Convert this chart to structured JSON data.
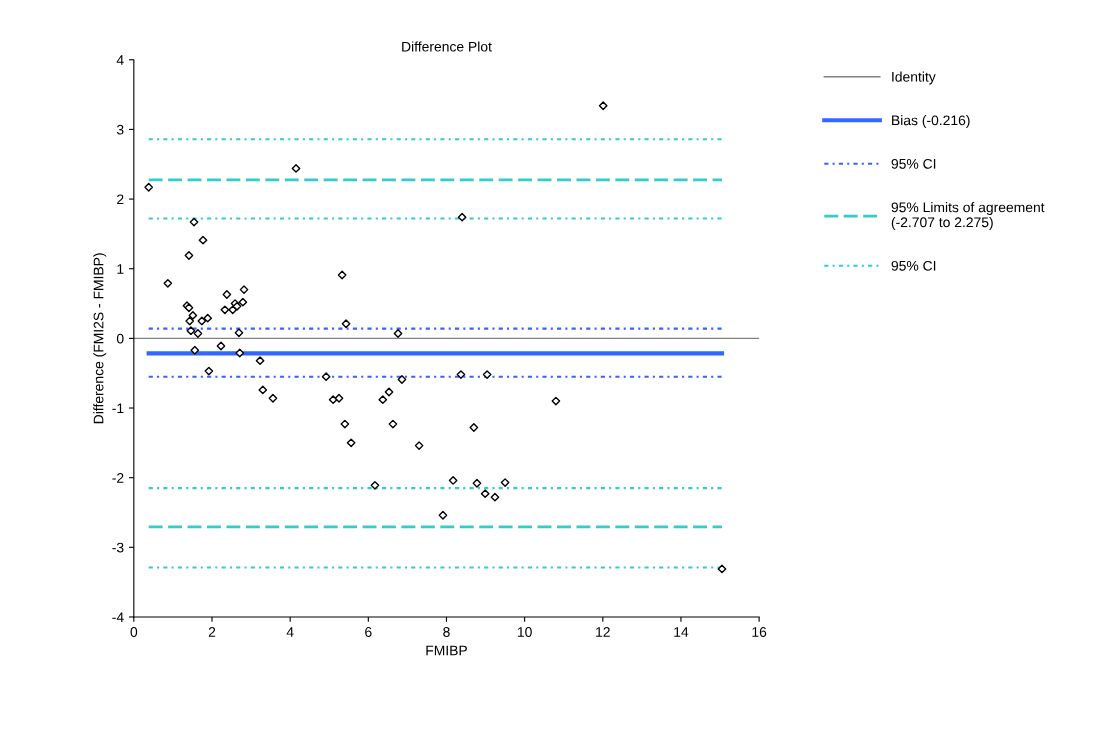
{
  "chart_data": {
    "type": "scatter",
    "title": "Difference Plot",
    "xlabel": "FMIBP",
    "ylabel": "Difference (FMI2S - FMIBP)",
    "xlim": [
      0,
      16
    ],
    "xticks": [
      0,
      2,
      4,
      6,
      8,
      10,
      12,
      14,
      16
    ],
    "ylim": [
      -4,
      4
    ],
    "yticks": [
      -4,
      -3,
      -2,
      -1,
      0,
      1,
      2,
      3,
      4
    ],
    "grid": false,
    "legend": "right",
    "series": [
      {
        "type": "line",
        "name": "Identity",
        "color": "#808080",
        "line_style": "solid",
        "x": [
          0,
          16
        ],
        "values": [
          0,
          0
        ]
      },
      {
        "type": "line",
        "name": "Bias (-0.216)",
        "color": "#3366ff",
        "line_style": "solid",
        "x": [
          0.38,
          15.05
        ],
        "values": [
          -0.216,
          -0.216
        ]
      },
      {
        "type": "line",
        "name": "95% CI",
        "color": "#3366ff",
        "line_style": "dotted",
        "x": [
          0.38,
          15.05
        ],
        "values": [
          0.14,
          0.14
        ]
      },
      {
        "type": "line",
        "color": "#3366ff",
        "line_style": "dotted",
        "x": [
          0.38,
          15.05
        ],
        "values": [
          -0.55,
          -0.55
        ]
      },
      {
        "type": "line",
        "name": "95% Limits of agreement\n(-2.707 to 2.275)",
        "color": "#33cccc",
        "line_style": "dashed",
        "x": [
          0.38,
          15.05
        ],
        "values": [
          2.275,
          2.275
        ]
      },
      {
        "type": "line",
        "color": "#33cccc",
        "line_style": "dashed",
        "x": [
          0.38,
          15.05
        ],
        "values": [
          -2.707,
          -2.707
        ]
      },
      {
        "type": "line",
        "name": "95% CI",
        "color": "#33cccc",
        "line_style": "dotted",
        "x": [
          0.38,
          15.05
        ],
        "values": [
          2.86,
          2.86
        ]
      },
      {
        "type": "line",
        "color": "#33cccc",
        "line_style": "dotted",
        "x": [
          0.38,
          15.05
        ],
        "values": [
          1.72,
          1.72
        ]
      },
      {
        "type": "line",
        "color": "#33cccc",
        "line_style": "dotted",
        "x": [
          0.38,
          15.05
        ],
        "values": [
          -2.15,
          -2.15
        ]
      },
      {
        "type": "line",
        "color": "#33cccc",
        "line_style": "dotted",
        "x": [
          0.38,
          15.05
        ],
        "values": [
          -3.29,
          -3.29
        ]
      },
      {
        "marker": "diamond",
        "color": "#000000",
        "x": [
          0.38,
          4.15,
          1.54,
          1.77,
          1.41,
          0.87,
          1.36,
          1.41,
          1.51,
          1.43,
          1.74,
          1.89,
          1.46,
          1.64,
          2.38,
          2.33,
          2.53,
          2.59,
          2.64,
          2.82,
          2.79,
          2.69,
          1.56,
          2.23,
          2.71,
          3.23,
          1.92,
          3.3,
          3.56,
          5.33,
          5.43,
          6.76,
          4.92,
          6.86,
          5.1,
          5.25,
          6.53,
          6.37,
          5.4,
          6.63,
          5.56,
          7.3,
          8.37,
          9.04,
          10.8,
          8.7,
          6.17,
          8.17,
          8.78,
          9.5,
          8.99,
          9.24,
          7.91,
          15.05,
          12.01,
          8.4
        ],
        "values": [
          2.17,
          2.44,
          1.67,
          1.41,
          1.19,
          0.79,
          0.47,
          0.44,
          0.33,
          0.25,
          0.25,
          0.29,
          0.11,
          0.07,
          0.63,
          0.41,
          0.41,
          0.5,
          0.46,
          0.7,
          0.52,
          0.08,
          -0.17,
          -0.11,
          -0.21,
          -0.32,
          -0.47,
          -0.74,
          -0.86,
          0.91,
          0.21,
          0.07,
          -0.55,
          -0.59,
          -0.88,
          -0.86,
          -0.77,
          -0.88,
          -1.23,
          -1.23,
          -1.5,
          -1.54,
          -0.52,
          -0.52,
          -0.9,
          -1.28,
          -2.11,
          -2.04,
          -2.08,
          -2.07,
          -2.23,
          -2.28,
          -2.54,
          -3.31,
          3.34,
          1.74
        ]
      }
    ]
  }
}
